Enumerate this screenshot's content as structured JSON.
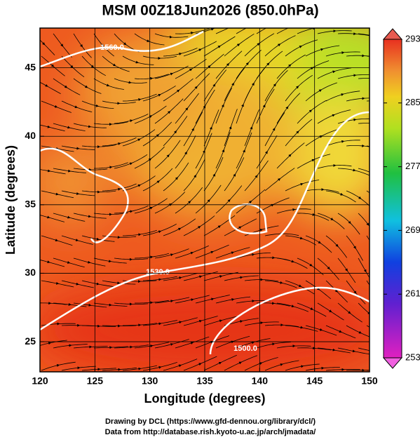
{
  "chart_data": {
    "type": "map",
    "title": "MSM 00Z18Jun2026 (850.0hPa)",
    "xlabel": "Longitude (degrees)",
    "ylabel": "Latitude  (degrees)",
    "xlim": [
      120,
      150
    ],
    "ylim": [
      22.8,
      47.9
    ],
    "xticks": [
      120,
      125,
      130,
      135,
      140,
      145,
      150
    ],
    "yticks": [
      25,
      30,
      35,
      40,
      45
    ],
    "grid": true,
    "contour_labels": [
      "1560.0",
      "1530.0",
      "1500.0"
    ],
    "colorbar": {
      "lim": [
        253,
        293
      ],
      "ticks": [
        253,
        261,
        269,
        277,
        285,
        293
      ]
    }
  },
  "footer": [
    "Drawing by DCL (https://www.gfd-dennou.org/library/dcl/)",
    "Data from http://database.rish.kyoto-u.ac.jp/arch/jmadata/"
  ]
}
